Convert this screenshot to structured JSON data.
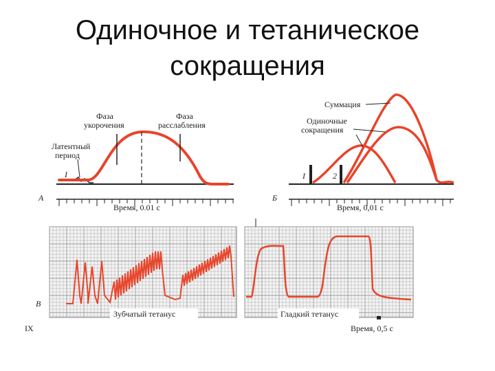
{
  "slide": {
    "title_line1": "Одиночное и тетаническое",
    "title_line2": "сокращения"
  },
  "panelA": {
    "letter": "А",
    "phase_short": [
      "Фаза",
      "укорочения"
    ],
    "phase_relax": [
      "Фаза",
      "расслабления"
    ],
    "latent": [
      "Латентный",
      "период"
    ],
    "stim": "I",
    "time_label": "Время, 0.01 с"
  },
  "panelB": {
    "letter": "Б",
    "summation": "Суммация",
    "single": [
      "Одиночные",
      "сокращения"
    ],
    "stim1": "I",
    "stim2": "2",
    "time_label": "Время, 0,01 с"
  },
  "panelV": {
    "letter": "В",
    "toothed": "Зубчатый тетанус",
    "smooth": "Гладкий тетанус",
    "time_label": "Время, 0,5 с",
    "marker": "IX"
  },
  "colors": {
    "trace": "#e8442a",
    "grid": "#9a9a9a",
    "ink": "#222222"
  }
}
